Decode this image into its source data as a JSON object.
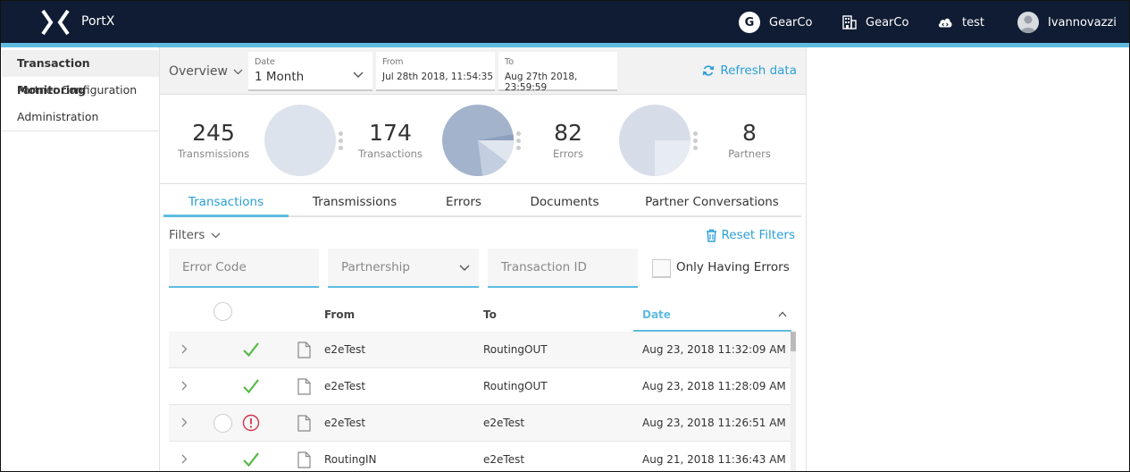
{
  "app": {
    "name": "PortX"
  },
  "header": {
    "org_label": "GearCo",
    "org_badge": "G",
    "company_label": "GearCo",
    "env_label": "test",
    "user_label": "Ivannovazzi"
  },
  "sidebar": {
    "items": [
      {
        "label": "Transaction Monitoring",
        "active": true
      },
      {
        "label": "Partner Configuration",
        "active": false
      },
      {
        "label": "Administration",
        "active": false
      }
    ]
  },
  "toolbar": {
    "view_label": "Overview",
    "date_label": "Date",
    "date_value": "1 Month",
    "from_label": "From",
    "from_value": "Jul 28th 2018, 11:54:35",
    "to_label": "To",
    "to_value": "Aug 27th 2018, 23:59:59",
    "refresh_label": "Refresh data"
  },
  "stats": {
    "transmissions": {
      "value": "245",
      "caption": "Transmissions"
    },
    "transactions": {
      "value": "174",
      "caption": "Transactions"
    },
    "errors": {
      "value": "82",
      "caption": "Errors"
    },
    "partners": {
      "value": "8",
      "caption": "Partners"
    }
  },
  "tabs": [
    {
      "label": "Transactions",
      "active": true
    },
    {
      "label": "Transmissions",
      "active": false
    },
    {
      "label": "Errors",
      "active": false
    },
    {
      "label": "Documents",
      "active": false
    },
    {
      "label": "Partner Conversations",
      "active": false
    }
  ],
  "filters": {
    "title": "Filters",
    "reset_label": "Reset Filters",
    "error_code_placeholder": "Error Code",
    "partnership_placeholder": "Partnership",
    "transaction_id_placeholder": "Transaction ID",
    "only_errors_label": "Only Having Errors",
    "only_errors_checked": false
  },
  "table": {
    "columns": {
      "from": "From",
      "to": "To",
      "date": "Date"
    },
    "sort": {
      "column": "date",
      "direction": "ascending"
    },
    "rows": [
      {
        "status": "ok",
        "from": "e2eTest",
        "to": "RoutingOUT",
        "date": "Aug 23, 2018 11:32:09 AM"
      },
      {
        "status": "ok",
        "from": "e2eTest",
        "to": "RoutingOUT",
        "date": "Aug 23, 2018 11:28:09 AM"
      },
      {
        "status": "error",
        "from": "e2eTest",
        "to": "e2eTest",
        "date": "Aug 23, 2018 11:26:51 AM"
      },
      {
        "status": "ok",
        "from": "RoutingIN",
        "to": "e2eTest",
        "date": "Aug 21, 2018 11:36:43 AM"
      }
    ]
  },
  "colors": {
    "header_bg": "#0f1c33",
    "accent": "#5fbce0",
    "link": "#2a9fd6",
    "success": "#58b947",
    "error": "#d0334a"
  }
}
